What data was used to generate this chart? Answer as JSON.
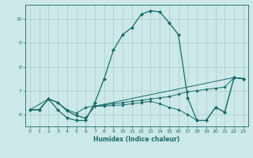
{
  "xlabel": "Humidex (Indice chaleur)",
  "bg_color": "#cce8e8",
  "grid_color": "#aacccc",
  "line_color": "#1a6b6b",
  "xlim": [
    -0.5,
    23.5
  ],
  "ylim": [
    5.5,
    10.6
  ],
  "yticks": [
    6,
    7,
    8,
    9,
    10
  ],
  "xticks": [
    0,
    1,
    2,
    3,
    4,
    5,
    6,
    7,
    8,
    9,
    10,
    11,
    12,
    13,
    14,
    15,
    16,
    17,
    18,
    19,
    20,
    21,
    22,
    23
  ],
  "line_main": {
    "x": [
      0,
      1,
      2,
      3,
      4,
      5,
      6,
      7,
      8,
      9,
      10,
      11,
      12,
      13,
      14,
      15,
      16,
      17,
      18,
      19,
      20,
      21,
      22,
      23
    ],
    "y": [
      6.2,
      6.2,
      6.65,
      6.2,
      5.85,
      5.75,
      5.75,
      6.5,
      7.5,
      8.7,
      9.35,
      9.65,
      10.2,
      10.35,
      10.3,
      9.85,
      9.35,
      6.7,
      5.75,
      5.75,
      6.3,
      6.1,
      7.55,
      7.5
    ]
  },
  "line2": {
    "x": [
      0,
      1,
      2,
      3,
      4,
      5,
      6,
      7,
      8,
      9,
      10,
      11,
      12,
      13,
      14,
      15,
      16,
      17,
      18,
      19,
      20,
      21,
      22,
      23
    ],
    "y": [
      6.2,
      6.2,
      6.65,
      6.5,
      6.2,
      6.05,
      6.3,
      6.35,
      6.4,
      6.45,
      6.5,
      6.55,
      6.6,
      6.65,
      6.7,
      6.75,
      6.85,
      6.95,
      7.0,
      7.05,
      7.1,
      7.15,
      7.55,
      7.5
    ]
  },
  "line3": {
    "x": [
      0,
      1,
      2,
      3,
      4,
      5,
      6,
      7,
      8,
      9,
      10,
      11,
      12,
      13,
      14,
      15,
      16,
      17,
      18,
      19,
      20,
      21,
      22,
      23
    ],
    "y": [
      6.2,
      6.2,
      6.65,
      6.5,
      6.15,
      5.95,
      5.85,
      6.35,
      6.35,
      6.38,
      6.4,
      6.45,
      6.5,
      6.55,
      6.45,
      6.3,
      6.2,
      6.0,
      5.75,
      5.75,
      6.3,
      6.1,
      7.55,
      7.5
    ]
  },
  "line4": {
    "x": [
      0,
      2,
      3,
      4,
      5,
      6,
      7,
      22,
      23
    ],
    "y": [
      6.2,
      6.65,
      6.5,
      6.15,
      5.95,
      5.85,
      6.35,
      7.55,
      7.5
    ]
  }
}
